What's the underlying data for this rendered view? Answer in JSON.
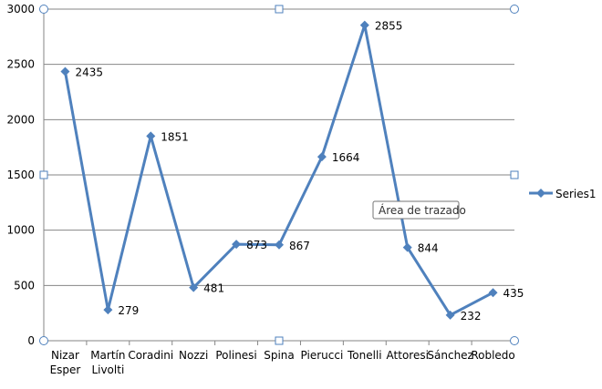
{
  "chart_data": {
    "type": "line",
    "categories": [
      [
        "Nizar",
        "Esper"
      ],
      [
        "Martín",
        "Livolti"
      ],
      [
        "Coradini"
      ],
      [
        "Nozzi"
      ],
      [
        "Polinesi"
      ],
      [
        "Spina"
      ],
      [
        "Pierucci"
      ],
      [
        "Tonelli"
      ],
      [
        "Attoresi"
      ],
      [
        "Sánchez"
      ],
      [
        "Robledo"
      ]
    ],
    "series": [
      {
        "name": "Series1",
        "values": [
          2435,
          279,
          1851,
          481,
          873,
          867,
          1664,
          2855,
          844,
          232,
          435
        ],
        "color": "#4f81bd",
        "marker": "diamond"
      }
    ],
    "ylim": [
      0,
      3000
    ],
    "yticks": [
      0,
      500,
      1000,
      1500,
      2000,
      2500,
      3000
    ],
    "grid": "horizontal",
    "legend_position": "right",
    "data_labels": true,
    "gridline_color": "#868686",
    "axis_color": "#868686"
  },
  "tooltip": {
    "text": "Área de trazado"
  },
  "selection": {
    "state": "plot-area-selected",
    "handle_color": "#4f81bd"
  }
}
